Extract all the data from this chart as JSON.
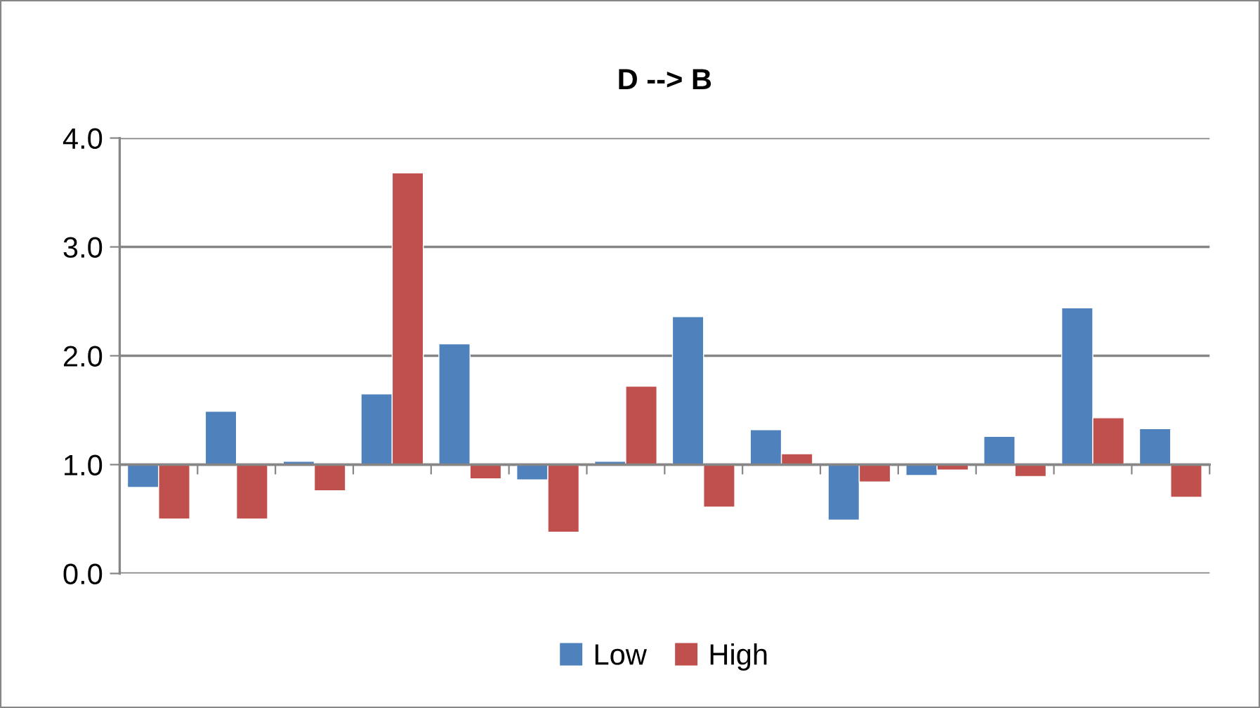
{
  "chart_data": {
    "type": "bar",
    "title": "D --> B",
    "categories": [
      null,
      null,
      null,
      null,
      null,
      null,
      null,
      null,
      null,
      null,
      null,
      null,
      null,
      null
    ],
    "series": [
      {
        "name": "Low",
        "color": "#4f81bd",
        "base": [
          1.0,
          1.0,
          1.0,
          1.0,
          1.0,
          1.0,
          1.0,
          1.0,
          1.0,
          1.0,
          1.0,
          1.0,
          1.0,
          1.0
        ],
        "values": [
          -0.21,
          0.49,
          0.03,
          0.65,
          1.11,
          -0.14,
          0.03,
          1.36,
          0.32,
          -0.51,
          -0.1,
          0.26,
          1.44,
          0.33
        ]
      },
      {
        "name": "High",
        "color": "#c0504d",
        "base": [
          1.0,
          1.0,
          1.0,
          1.0,
          1.0,
          1.0,
          1.0,
          1.0,
          1.0,
          1.0,
          1.0,
          1.0,
          1.0,
          1.0
        ],
        "values": [
          -0.5,
          -0.5,
          -0.24,
          2.68,
          -0.13,
          -0.62,
          0.72,
          -0.39,
          0.1,
          -0.16,
          -0.05,
          -0.11,
          0.43,
          -0.3
        ]
      }
    ],
    "ylim": [
      0.0,
      4.0
    ],
    "yticks": [
      {
        "value": 0,
        "label": "0.0"
      },
      {
        "value": 1,
        "label": "1.0"
      },
      {
        "value": 2,
        "label": "2.0"
      },
      {
        "value": 3,
        "label": "3.0"
      },
      {
        "value": 4,
        "label": "4.0"
      }
    ],
    "grid": "y",
    "legend": "bottom",
    "tick_labels": "y"
  }
}
